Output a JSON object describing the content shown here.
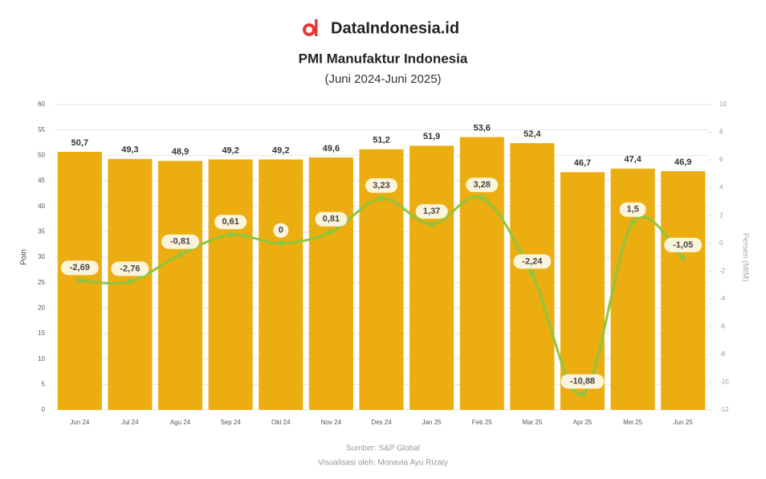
{
  "brand": "DataIndonesia.id",
  "chart_data": {
    "type": "bar",
    "title": "PMI Manufaktur Indonesia",
    "subtitle": "(Juni 2024-Juni 2025)",
    "y_label": "Poin",
    "y2_label": "Persen (MtM)",
    "categories": [
      "Jun 24",
      "Jul 24",
      "Agu 24",
      "Sep 24",
      "Okt 24",
      "Nov 24",
      "Des 24",
      "Jan 25",
      "Feb 25",
      "Mar 25",
      "Apr 25",
      "Mei 25",
      "Jun 25"
    ],
    "series": [
      {
        "type": "bar",
        "color": "#ebad0f",
        "values": [
          50.7,
          49.3,
          48.9,
          49.2,
          49.2,
          49.6,
          51.2,
          51.9,
          53.6,
          52.4,
          46.7,
          47.4,
          46.9
        ],
        "value_labels": [
          "50,7",
          "49,3",
          "48,9",
          "49,2",
          "49,2",
          "49,6",
          "51,2",
          "51,9",
          "53,6",
          "52,4",
          "46,7",
          "47,4",
          "46,9"
        ]
      },
      {
        "type": "line",
        "axis": "y2",
        "color": "#8dc63f",
        "values": [
          -2.69,
          -2.76,
          -0.81,
          0.61,
          0,
          0.81,
          3.23,
          1.37,
          3.28,
          -2.24,
          -10.88,
          1.5,
          -1.05
        ],
        "value_labels": [
          "-2,69",
          "-2,76",
          "-0,81",
          "0,61",
          "0",
          "0,81",
          "3,23",
          "1,37",
          "3,28",
          "-2,24",
          "-10,88",
          "1,5",
          "-1,05"
        ]
      }
    ],
    "ylim": [
      0,
      60
    ],
    "yticks": [
      0,
      5,
      10,
      15,
      20,
      25,
      30,
      35,
      40,
      45,
      50,
      55,
      60
    ],
    "y2lim": [
      -12,
      10
    ],
    "y2ticks": [
      -12,
      -10,
      -8,
      -6,
      -4,
      -2,
      0,
      2,
      4,
      6,
      8,
      10
    ],
    "grid": true,
    "source": "Sumber: S&P Global",
    "credit": "Visualisasi oleh: Monavia Ayu Rizaty"
  }
}
